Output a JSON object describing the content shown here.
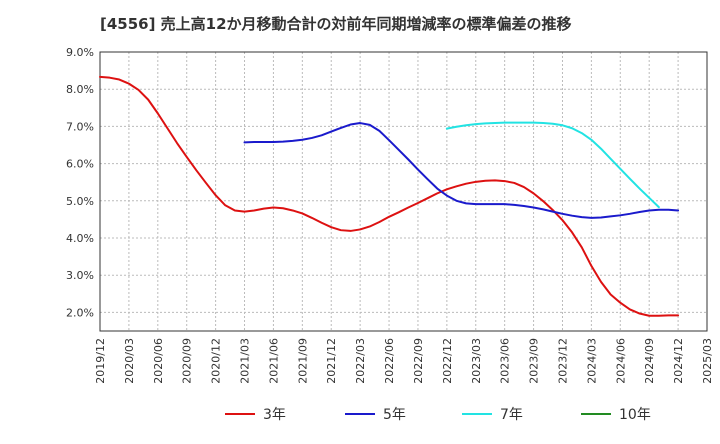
{
  "chart_data": {
    "type": "line",
    "title": "[4556]  売上高12か月移動合計の対前年同期増減率の標準偏差の推移",
    "xlabel": "",
    "ylabel": "",
    "ylim": [
      1.5,
      9.0
    ],
    "yticks": [
      "2.0%",
      "3.0%",
      "4.0%",
      "5.0%",
      "6.0%",
      "7.0%",
      "8.0%",
      "9.0%"
    ],
    "xlim": [
      "2019/12",
      "2025/03"
    ],
    "xticks": [
      "2019/12",
      "2020/03",
      "2020/06",
      "2020/09",
      "2020/12",
      "2021/03",
      "2021/06",
      "2021/09",
      "2021/12",
      "2022/03",
      "2022/06",
      "2022/09",
      "2022/12",
      "2023/03",
      "2023/06",
      "2023/09",
      "2023/12",
      "2024/03",
      "2024/06",
      "2024/09",
      "2024/12",
      "2025/03"
    ],
    "grid": true,
    "legend_position": "bottom",
    "series": [
      {
        "name": "3年",
        "color": "#dd1111",
        "points": [
          [
            "2019/12",
            8.33
          ],
          [
            "2020/01",
            8.31
          ],
          [
            "2020/02",
            8.26
          ],
          [
            "2020/03",
            8.15
          ],
          [
            "2020/04",
            7.98
          ],
          [
            "2020/05",
            7.72
          ],
          [
            "2020/06",
            7.35
          ],
          [
            "2020/07",
            6.95
          ],
          [
            "2020/08",
            6.55
          ],
          [
            "2020/09",
            6.18
          ],
          [
            "2020/10",
            5.82
          ],
          [
            "2020/11",
            5.48
          ],
          [
            "2020/12",
            5.15
          ],
          [
            "2021/01",
            4.88
          ],
          [
            "2021/02",
            4.74
          ],
          [
            "2021/03",
            4.71
          ],
          [
            "2021/04",
            4.74
          ],
          [
            "2021/05",
            4.79
          ],
          [
            "2021/06",
            4.82
          ],
          [
            "2021/07",
            4.8
          ],
          [
            "2021/08",
            4.74
          ],
          [
            "2021/09",
            4.66
          ],
          [
            "2021/10",
            4.54
          ],
          [
            "2021/11",
            4.41
          ],
          [
            "2021/12",
            4.29
          ],
          [
            "2022/01",
            4.21
          ],
          [
            "2022/02",
            4.19
          ],
          [
            "2022/03",
            4.23
          ],
          [
            "2022/04",
            4.31
          ],
          [
            "2022/05",
            4.43
          ],
          [
            "2022/06",
            4.57
          ],
          [
            "2022/07",
            4.69
          ],
          [
            "2022/08",
            4.82
          ],
          [
            "2022/09",
            4.94
          ],
          [
            "2022/10",
            5.07
          ],
          [
            "2022/11",
            5.2
          ],
          [
            "2022/12",
            5.31
          ],
          [
            "2023/01",
            5.39
          ],
          [
            "2023/02",
            5.46
          ],
          [
            "2023/03",
            5.51
          ],
          [
            "2023/04",
            5.54
          ],
          [
            "2023/05",
            5.55
          ],
          [
            "2023/06",
            5.53
          ],
          [
            "2023/07",
            5.48
          ],
          [
            "2023/08",
            5.37
          ],
          [
            "2023/09",
            5.2
          ],
          [
            "2023/10",
            4.99
          ],
          [
            "2023/11",
            4.75
          ],
          [
            "2023/12",
            4.48
          ],
          [
            "2024/01",
            4.15
          ],
          [
            "2024/02",
            3.75
          ],
          [
            "2024/03",
            3.25
          ],
          [
            "2024/04",
            2.82
          ],
          [
            "2024/05",
            2.48
          ],
          [
            "2024/06",
            2.26
          ],
          [
            "2024/07",
            2.08
          ],
          [
            "2024/08",
            1.97
          ],
          [
            "2024/09",
            1.91
          ],
          [
            "2024/10",
            1.91
          ],
          [
            "2024/11",
            1.92
          ],
          [
            "2024/12",
            1.92
          ]
        ]
      },
      {
        "name": "5年",
        "color": "#1a1acc",
        "points": [
          [
            "2021/03",
            6.57
          ],
          [
            "2021/04",
            6.58
          ],
          [
            "2021/05",
            6.58
          ],
          [
            "2021/06",
            6.58
          ],
          [
            "2021/07",
            6.59
          ],
          [
            "2021/08",
            6.61
          ],
          [
            "2021/09",
            6.64
          ],
          [
            "2021/10",
            6.69
          ],
          [
            "2021/11",
            6.76
          ],
          [
            "2021/12",
            6.86
          ],
          [
            "2022/01",
            6.96
          ],
          [
            "2022/02",
            7.05
          ],
          [
            "2022/03",
            7.09
          ],
          [
            "2022/04",
            7.04
          ],
          [
            "2022/05",
            6.88
          ],
          [
            "2022/06",
            6.63
          ],
          [
            "2022/07",
            6.37
          ],
          [
            "2022/08",
            6.11
          ],
          [
            "2022/09",
            5.84
          ],
          [
            "2022/10",
            5.58
          ],
          [
            "2022/11",
            5.33
          ],
          [
            "2022/12",
            5.14
          ],
          [
            "2023/01",
            5.0
          ],
          [
            "2023/02",
            4.93
          ],
          [
            "2023/03",
            4.91
          ],
          [
            "2023/04",
            4.91
          ],
          [
            "2023/05",
            4.91
          ],
          [
            "2023/06",
            4.91
          ],
          [
            "2023/07",
            4.89
          ],
          [
            "2023/08",
            4.86
          ],
          [
            "2023/09",
            4.82
          ],
          [
            "2023/10",
            4.77
          ],
          [
            "2023/11",
            4.71
          ],
          [
            "2023/12",
            4.65
          ],
          [
            "2024/01",
            4.6
          ],
          [
            "2024/02",
            4.56
          ],
          [
            "2024/03",
            4.54
          ],
          [
            "2024/04",
            4.55
          ],
          [
            "2024/05",
            4.58
          ],
          [
            "2024/06",
            4.61
          ],
          [
            "2024/07",
            4.65
          ],
          [
            "2024/08",
            4.7
          ],
          [
            "2024/09",
            4.74
          ],
          [
            "2024/10",
            4.76
          ],
          [
            "2024/11",
            4.76
          ],
          [
            "2024/12",
            4.74
          ]
        ]
      },
      {
        "name": "7年",
        "color": "#22e3e3",
        "points": [
          [
            "2022/12",
            6.94
          ],
          [
            "2023/01",
            6.99
          ],
          [
            "2023/02",
            7.03
          ],
          [
            "2023/03",
            7.06
          ],
          [
            "2023/04",
            7.08
          ],
          [
            "2023/05",
            7.09
          ],
          [
            "2023/06",
            7.1
          ],
          [
            "2023/07",
            7.1
          ],
          [
            "2023/08",
            7.1
          ],
          [
            "2023/09",
            7.1
          ],
          [
            "2023/10",
            7.09
          ],
          [
            "2023/11",
            7.07
          ],
          [
            "2023/12",
            7.03
          ],
          [
            "2024/01",
            6.95
          ],
          [
            "2024/02",
            6.82
          ],
          [
            "2024/03",
            6.64
          ],
          [
            "2024/04",
            6.4
          ],
          [
            "2024/05",
            6.13
          ],
          [
            "2024/06",
            5.86
          ],
          [
            "2024/07",
            5.59
          ],
          [
            "2024/08",
            5.33
          ],
          [
            "2024/09",
            5.08
          ],
          [
            "2024/10",
            4.83
          ]
        ]
      },
      {
        "name": "10年",
        "color": "#228b22",
        "points": []
      }
    ]
  }
}
